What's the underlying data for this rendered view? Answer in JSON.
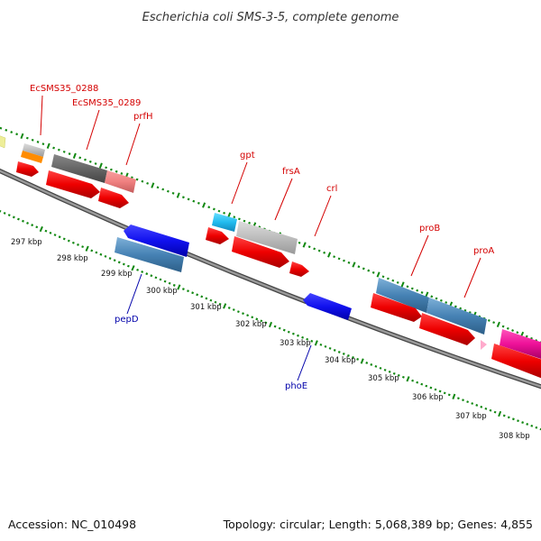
{
  "title": "Escherichia coli SMS-3-5, complete genome",
  "footer": {
    "accession": "Accession: NC_010498",
    "summary": "Topology: circular; Length: 5,068,389 bp; Genes: 4,855"
  },
  "ticks": [
    "297 kbp",
    "298 kbp",
    "299 kbp",
    "300 kbp",
    "301 kbp",
    "302 kbp",
    "303 kbp",
    "304 kbp",
    "305 kbp",
    "306 kbp",
    "307 kbp",
    "308 kbp"
  ],
  "gene_labels": {
    "forward": [
      {
        "name": "EcSMS35_0288",
        "color": "#d40000"
      },
      {
        "name": "EcSMS35_0289",
        "color": "#d40000"
      },
      {
        "name": "prfH",
        "color": "#d40000"
      },
      {
        "name": "gpt",
        "color": "#d40000"
      },
      {
        "name": "frsA",
        "color": "#d40000"
      },
      {
        "name": "crl",
        "color": "#d40000"
      },
      {
        "name": "proB",
        "color": "#d40000"
      },
      {
        "name": "proA",
        "color": "#d40000"
      }
    ],
    "reverse": [
      {
        "name": "pepD",
        "color": "#0000aa"
      },
      {
        "name": "phoE",
        "color": "#0000aa"
      }
    ]
  },
  "colors": {
    "cds_forward": "#ee1111",
    "cds_reverse": "#1a1aee",
    "gene_blue": "#4682b4",
    "gene_gray": "#bdbdbd",
    "gene_dark": "#666666",
    "gene_pink": "#f08080",
    "gene_cyan": "#22bbee",
    "gene_magenta": "#ee1199",
    "gene_orange": "#ff8c00",
    "gene_yellow": "#eeee99",
    "tick_green": "#118811",
    "backbone": "#777777"
  }
}
